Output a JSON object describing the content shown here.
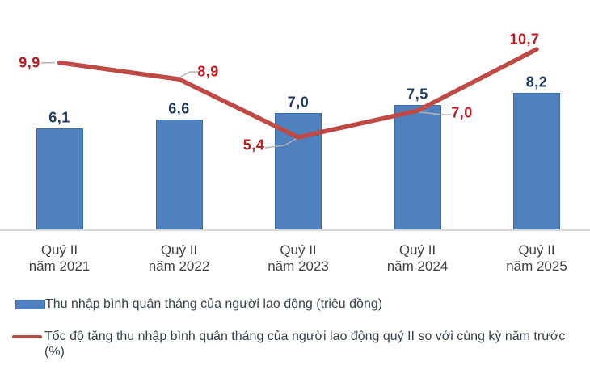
{
  "chart_data": {
    "type": "bar+line combo",
    "title": "",
    "categories": [
      "Quý II năm 2021",
      "Quý II năm 2022",
      "Quý II năm 2023",
      "Quý II năm 2024",
      "Quý II năm 2025"
    ],
    "series": [
      {
        "name": "Thu nhập bình quân tháng của người lao động (triệu đồng)",
        "type": "bar",
        "values": [
          6.1,
          6.6,
          7.0,
          7.5,
          8.2
        ],
        "labels": [
          "6,1",
          "6,6",
          "7,0",
          "7,5",
          "8,2"
        ],
        "color": "#4e81bd",
        "label_color": "#1f3a63"
      },
      {
        "name": "Tốc độ tăng thu nhập bình quân tháng của người lao động quý II so với cùng kỳ năm trước (%)",
        "type": "line",
        "values": [
          9.9,
          8.9,
          5.4,
          7.0,
          10.7
        ],
        "labels": [
          "9,9",
          "8,9",
          "5,4",
          "7,0",
          "10,7"
        ],
        "color": "#bf4a45",
        "label_color": "#c2181f"
      }
    ],
    "ylim": [
      0,
      13.8
    ],
    "grid": false,
    "y_axis_visible": false,
    "legend_position": "bottom-left",
    "axis_line_color": "#d9d9d9",
    "category_label_color": "#3f3f3f",
    "leader_line_color": "#b3b3b3"
  },
  "legend": {
    "items": [
      {
        "label": "Thu nhập bình quân tháng của người lao động (triệu đồng)"
      },
      {
        "label": "Tốc độ tăng thu nhập bình quân tháng của người lao động quý II so với cùng kỳ năm trước (%)"
      }
    ]
  }
}
